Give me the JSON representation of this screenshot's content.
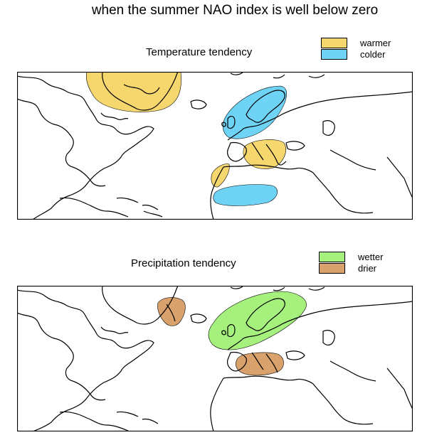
{
  "title": "when the summer NAO index is well below zero",
  "panels": [
    {
      "title": "Temperature tendency",
      "legend": [
        {
          "label": "warmer",
          "color": "#F5D76E"
        },
        {
          "label": "colder",
          "color": "#6FD3F5"
        }
      ]
    },
    {
      "title": "Precipitation tendency",
      "legend": [
        {
          "label": "wetter",
          "color": "#A6F07D"
        },
        {
          "label": "drier",
          "color": "#D9A16B"
        }
      ]
    }
  ]
}
